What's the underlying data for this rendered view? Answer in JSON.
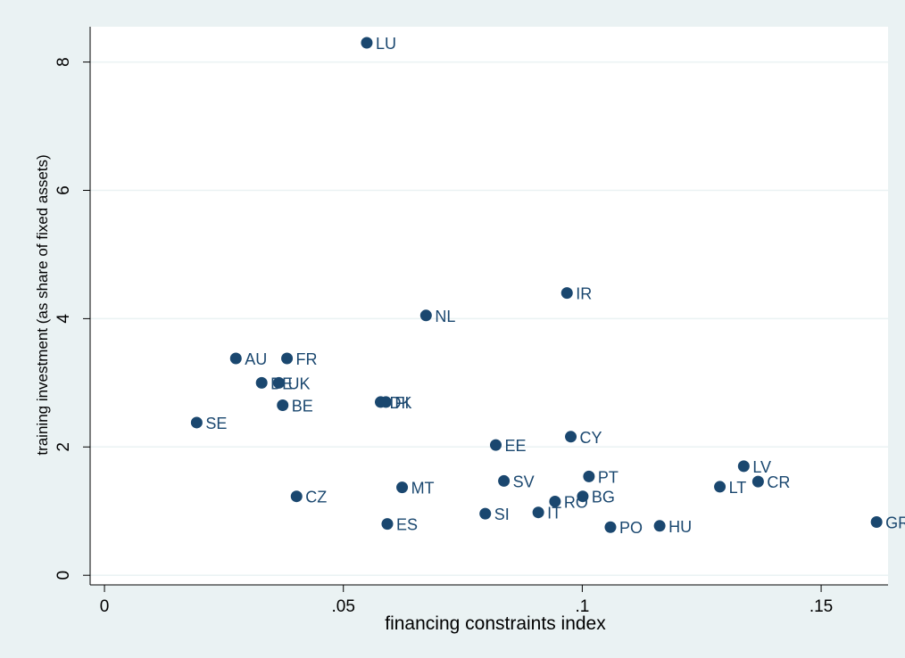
{
  "chart_data": {
    "type": "scatter",
    "title": "",
    "xlabel": "financing constraints index",
    "ylabel": "training investment (as share of fixed assets)",
    "xlim": [
      -0.003,
      0.164
    ],
    "ylim": [
      -0.15,
      8.55
    ],
    "x_ticks": [
      {
        "value": 0,
        "label": "0"
      },
      {
        "value": 0.05,
        "label": ".05"
      },
      {
        "value": 0.1,
        "label": ".1"
      },
      {
        "value": 0.15,
        "label": ".15"
      }
    ],
    "y_ticks": [
      {
        "value": 0,
        "label": "0"
      },
      {
        "value": 2,
        "label": "2"
      },
      {
        "value": 4,
        "label": "4"
      },
      {
        "value": 6,
        "label": "6"
      },
      {
        "value": 8,
        "label": "8"
      }
    ],
    "grid": "horizontal",
    "colors": {
      "background": "#eaf2f3",
      "plot_background": "#ffffff",
      "marker": "#1a476f",
      "label": "#1a476f",
      "grid": "#eaf2f3"
    },
    "points": [
      {
        "label": "LU",
        "x": 0.0549,
        "y": 8.3
      },
      {
        "label": "IR",
        "x": 0.0968,
        "y": 4.4
      },
      {
        "label": "NL",
        "x": 0.0673,
        "y": 4.05
      },
      {
        "label": "AU",
        "x": 0.0275,
        "y": 3.38
      },
      {
        "label": "FR",
        "x": 0.0382,
        "y": 3.38
      },
      {
        "label": "DE",
        "x": 0.0329,
        "y": 3.0
      },
      {
        "label": "UK",
        "x": 0.0365,
        "y": 3.0
      },
      {
        "label": "BE",
        "x": 0.0373,
        "y": 2.65
      },
      {
        "label": "DK",
        "x": 0.0578,
        "y": 2.7
      },
      {
        "label": "FI",
        "x": 0.0589,
        "y": 2.7
      },
      {
        "label": "SE",
        "x": 0.0193,
        "y": 2.38
      },
      {
        "label": "CY",
        "x": 0.0976,
        "y": 2.16
      },
      {
        "label": "EE",
        "x": 0.0819,
        "y": 2.03
      },
      {
        "label": "LV",
        "x": 0.1338,
        "y": 1.7
      },
      {
        "label": "PT",
        "x": 0.1014,
        "y": 1.54
      },
      {
        "label": "SV",
        "x": 0.0836,
        "y": 1.47
      },
      {
        "label": "CR",
        "x": 0.1368,
        "y": 1.46
      },
      {
        "label": "LT",
        "x": 0.1288,
        "y": 1.38
      },
      {
        "label": "MT",
        "x": 0.0623,
        "y": 1.37
      },
      {
        "label": "CZ",
        "x": 0.0402,
        "y": 1.23
      },
      {
        "label": "BG",
        "x": 0.1001,
        "y": 1.23
      },
      {
        "label": "RO",
        "x": 0.0943,
        "y": 1.15
      },
      {
        "label": "IT",
        "x": 0.0908,
        "y": 0.98
      },
      {
        "label": "SI",
        "x": 0.0797,
        "y": 0.96
      },
      {
        "label": "GR",
        "x": 0.1616,
        "y": 0.83
      },
      {
        "label": "ES",
        "x": 0.0592,
        "y": 0.8
      },
      {
        "label": "HU",
        "x": 0.1162,
        "y": 0.77
      },
      {
        "label": "PO",
        "x": 0.1059,
        "y": 0.75
      }
    ]
  }
}
